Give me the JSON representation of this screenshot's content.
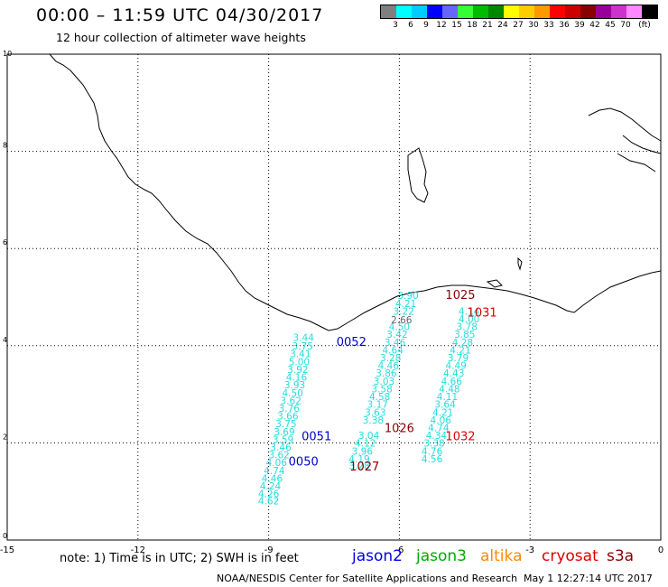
{
  "header": {
    "title": "00:00 – 11:59 UTC 04/30/2017",
    "subtitle": "12 hour collection of altimeter wave heights"
  },
  "color_scale": {
    "colors": [
      "#7f7f7f",
      "#00ffff",
      "#00ccff",
      "#0000ff",
      "#6666ff",
      "#33ff33",
      "#00bb00",
      "#008800",
      "#ffff00",
      "#ffcc00",
      "#ff9900",
      "#ff0000",
      "#cc0000",
      "#880000",
      "#990099",
      "#cc33cc",
      "#ff88ff",
      "#000000"
    ],
    "labels": [
      "3",
      "6",
      "9",
      "12",
      "15",
      "18",
      "21",
      "24",
      "27",
      "30",
      "33",
      "36",
      "39",
      "42",
      "45",
      "70",
      "(ft)"
    ]
  },
  "axes": {
    "x_ticks": [
      "-15",
      "-12",
      "-9",
      "-6",
      "-3",
      "0"
    ],
    "y_ticks": [
      "0",
      "2",
      "4",
      "6",
      "8",
      "10"
    ]
  },
  "tracks": [
    {
      "color": "#22dddd",
      "points": [
        {
          "x": -8.2,
          "y": 4.1,
          "v": "3.44"
        },
        {
          "x": -8.22,
          "y": 3.92,
          "v": "3.75"
        },
        {
          "x": -8.27,
          "y": 3.76,
          "v": "3.41"
        },
        {
          "x": -8.3,
          "y": 3.6,
          "v": "5.00"
        },
        {
          "x": -8.33,
          "y": 3.44,
          "v": "3.92"
        },
        {
          "x": -8.36,
          "y": 3.28,
          "v": "4.16"
        },
        {
          "x": -8.4,
          "y": 3.12,
          "v": "3.93"
        },
        {
          "x": -8.45,
          "y": 2.96,
          "v": "4.50"
        },
        {
          "x": -8.49,
          "y": 2.8,
          "v": "3.62"
        },
        {
          "x": -8.53,
          "y": 2.64,
          "v": "3.76"
        },
        {
          "x": -8.56,
          "y": 2.48,
          "v": "3.66"
        },
        {
          "x": -8.6,
          "y": 2.32,
          "v": "3.75"
        },
        {
          "x": -8.64,
          "y": 2.16,
          "v": "3.69"
        },
        {
          "x": -8.67,
          "y": 2.0,
          "v": "3.59"
        },
        {
          "x": -8.72,
          "y": 1.84,
          "v": "3.46"
        },
        {
          "x": -8.76,
          "y": 1.68,
          "v": "3.62"
        },
        {
          "x": -8.82,
          "y": 1.52,
          "v": "4.06"
        },
        {
          "x": -8.87,
          "y": 1.36,
          "v": "4.74"
        },
        {
          "x": -8.92,
          "y": 1.2,
          "v": "4.46"
        },
        {
          "x": -8.96,
          "y": 1.04,
          "v": "4.24"
        },
        {
          "x": -9.0,
          "y": 0.88,
          "v": "4.26"
        },
        {
          "x": -9.0,
          "y": 0.73,
          "v": "4.62"
        }
      ]
    },
    {
      "color": "#22dddd",
      "points": [
        {
          "x": -5.8,
          "y": 4.96,
          "v": "3.90"
        },
        {
          "x": -5.85,
          "y": 4.8,
          "v": "4.21"
        },
        {
          "x": -5.9,
          "y": 4.64,
          "v": "3.22"
        },
        {
          "x": -6.0,
          "y": 4.32,
          "v": "4.50"
        },
        {
          "x": -6.05,
          "y": 4.16,
          "v": "3.42"
        },
        {
          "x": -6.1,
          "y": 4.0,
          "v": "3.46"
        },
        {
          "x": -6.15,
          "y": 3.84,
          "v": "4.64"
        },
        {
          "x": -6.2,
          "y": 3.68,
          "v": "3.28"
        },
        {
          "x": -6.25,
          "y": 3.52,
          "v": "4.46"
        },
        {
          "x": -6.3,
          "y": 3.36,
          "v": "3.86"
        },
        {
          "x": -6.35,
          "y": 3.2,
          "v": "3.03"
        },
        {
          "x": -6.4,
          "y": 3.04,
          "v": "3.58"
        },
        {
          "x": -6.45,
          "y": 2.88,
          "v": "4.58"
        },
        {
          "x": -6.5,
          "y": 2.72,
          "v": "3.17"
        },
        {
          "x": -6.55,
          "y": 2.56,
          "v": "3.63"
        },
        {
          "x": -6.6,
          "y": 2.4,
          "v": "3.38"
        },
        {
          "x": -6.7,
          "y": 2.08,
          "v": "3.04"
        },
        {
          "x": -6.78,
          "y": 1.92,
          "v": "4.12"
        },
        {
          "x": -6.85,
          "y": 1.76,
          "v": "3.96"
        },
        {
          "x": -6.92,
          "y": 1.6,
          "v": "4.19"
        },
        {
          "x": -6.92,
          "y": 1.46,
          "v": "3.28"
        }
      ]
    },
    {
      "color": "#22dddd",
      "points": [
        {
          "x": -4.4,
          "y": 4.64,
          "v": "4.14"
        },
        {
          "x": -4.4,
          "y": 4.48,
          "v": "4.00"
        },
        {
          "x": -4.45,
          "y": 4.32,
          "v": "3.78"
        },
        {
          "x": -4.5,
          "y": 4.16,
          "v": "3.85"
        },
        {
          "x": -4.55,
          "y": 4.0,
          "v": "4.28"
        },
        {
          "x": -4.6,
          "y": 3.84,
          "v": "4.21"
        },
        {
          "x": -4.65,
          "y": 3.68,
          "v": "3.79"
        },
        {
          "x": -4.7,
          "y": 3.52,
          "v": "4.49"
        },
        {
          "x": -4.75,
          "y": 3.36,
          "v": "4.43"
        },
        {
          "x": -4.8,
          "y": 3.2,
          "v": "4.66"
        },
        {
          "x": -4.85,
          "y": 3.04,
          "v": "4.48"
        },
        {
          "x": -4.9,
          "y": 2.88,
          "v": "4.11"
        },
        {
          "x": -4.95,
          "y": 2.72,
          "v": "3.64"
        },
        {
          "x": -5.0,
          "y": 2.56,
          "v": "4.21"
        },
        {
          "x": -5.05,
          "y": 2.4,
          "v": "4.06"
        },
        {
          "x": -5.1,
          "y": 2.24,
          "v": "4.74"
        },
        {
          "x": -5.15,
          "y": 2.08,
          "v": "4.34"
        },
        {
          "x": -5.2,
          "y": 1.92,
          "v": "3.38"
        },
        {
          "x": -5.25,
          "y": 1.76,
          "v": "4.76"
        },
        {
          "x": -5.25,
          "y": 1.6,
          "v": "4.56"
        }
      ]
    }
  ],
  "grey_values": [
    {
      "x": -5.95,
      "y": 4.46,
      "v": "2.66"
    }
  ],
  "time_labels": [
    {
      "x": -7.1,
      "y": 4.0,
      "text": "0052",
      "color": "#0000cc"
    },
    {
      "x": -7.9,
      "y": 2.05,
      "text": "0051",
      "color": "#0000cc"
    },
    {
      "x": -8.2,
      "y": 1.53,
      "text": "0050",
      "color": "#0000cc"
    },
    {
      "x": -4.6,
      "y": 4.96,
      "text": "1025",
      "color": "#880000"
    },
    {
      "x": -4.1,
      "y": 4.6,
      "text": "1031",
      "color": "#dd0000"
    },
    {
      "x": -6.0,
      "y": 2.22,
      "text": "1026",
      "color": "#880000"
    },
    {
      "x": -4.6,
      "y": 2.05,
      "text": "1032",
      "color": "#dd0000"
    },
    {
      "x": -6.8,
      "y": 1.43,
      "text": "1027",
      "color": "#880000"
    }
  ],
  "legend": {
    "note": "note:  1) Time is in UTC;  2) SWH is in feet",
    "satellites": [
      {
        "name": "jason2",
        "color": "#0000ee"
      },
      {
        "name": "jason3",
        "color": "#00aa00"
      },
      {
        "name": "altika",
        "color": "#ff8800"
      },
      {
        "name": "cryosat",
        "color": "#dd0000"
      },
      {
        "name": "s3a",
        "color": "#880000"
      }
    ]
  },
  "footer": {
    "credit": "NOAA/NESDIS Center for Satellite Applications and Research",
    "timestamp": "May  1 12:27:14 UTC 2017"
  }
}
